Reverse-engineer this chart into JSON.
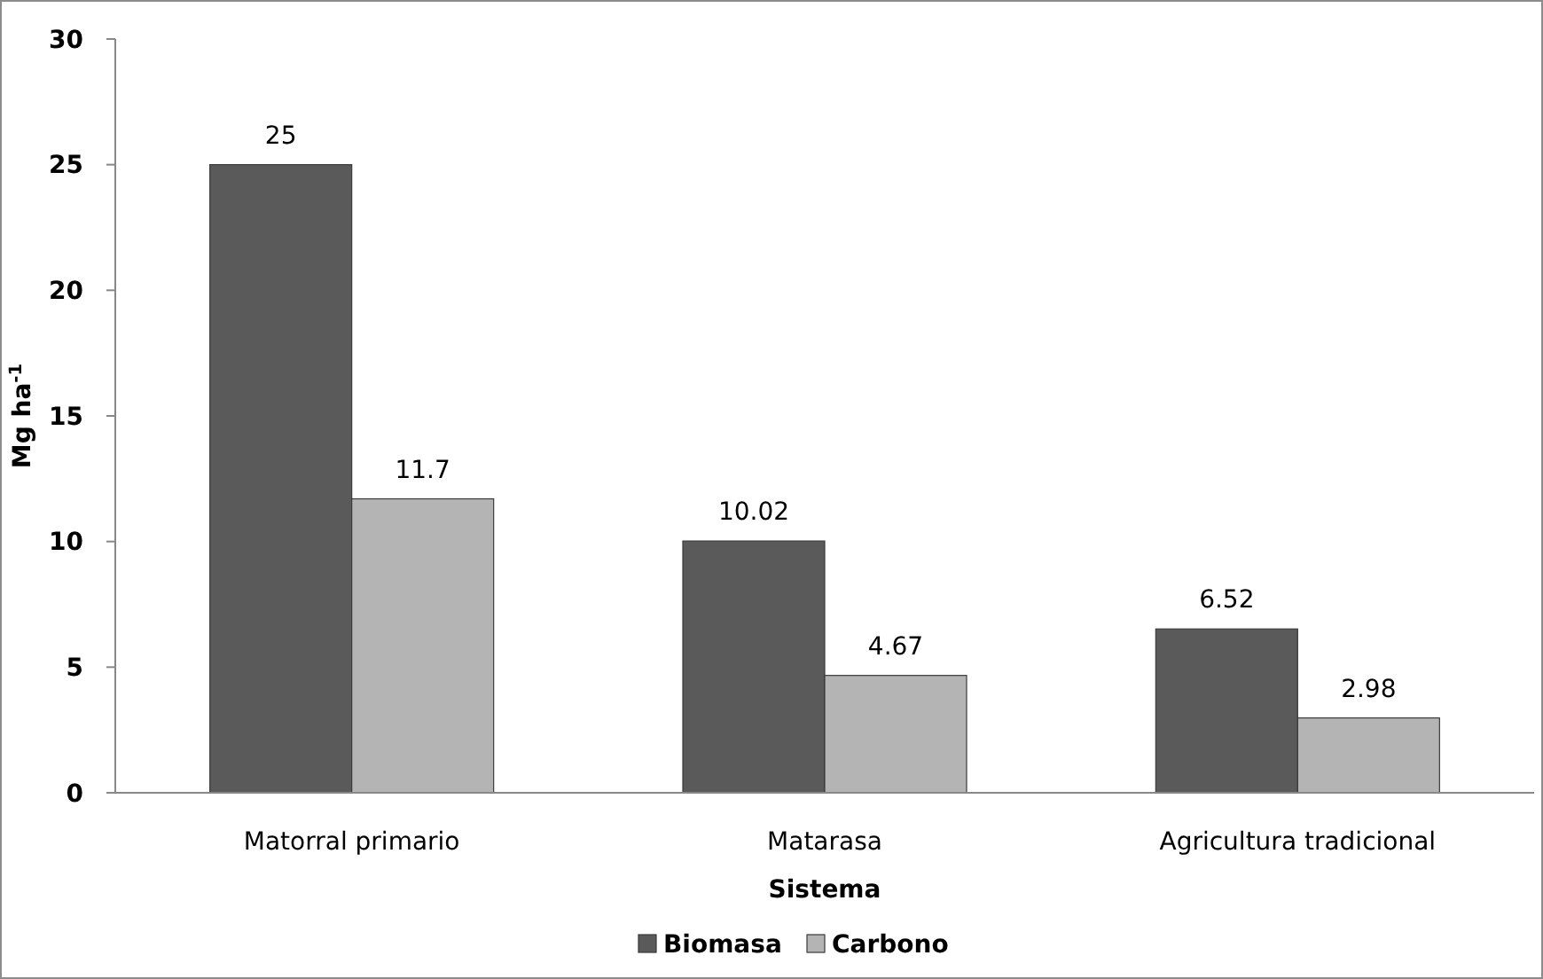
{
  "chart_data": {
    "type": "bar",
    "xlabel": "Sistema",
    "ylabel": "Mg ha$^{-1}$",
    "categories": [
      "Matorral primario",
      "Matarasa",
      "Agricultura tradicional"
    ],
    "series": [
      {
        "name": "Biomasa",
        "color": "#5a5a5a",
        "values": [
          25,
          10.02,
          6.52
        ]
      },
      {
        "name": "Carbono",
        "color": "#b4b4b4",
        "values": [
          11.7,
          4.67,
          2.98
        ]
      }
    ],
    "ylim": [
      0,
      30
    ],
    "yticks": [
      0,
      5,
      10,
      15,
      20,
      25,
      30
    ],
    "grid": false,
    "legend": "bottom",
    "data_labels": true
  }
}
